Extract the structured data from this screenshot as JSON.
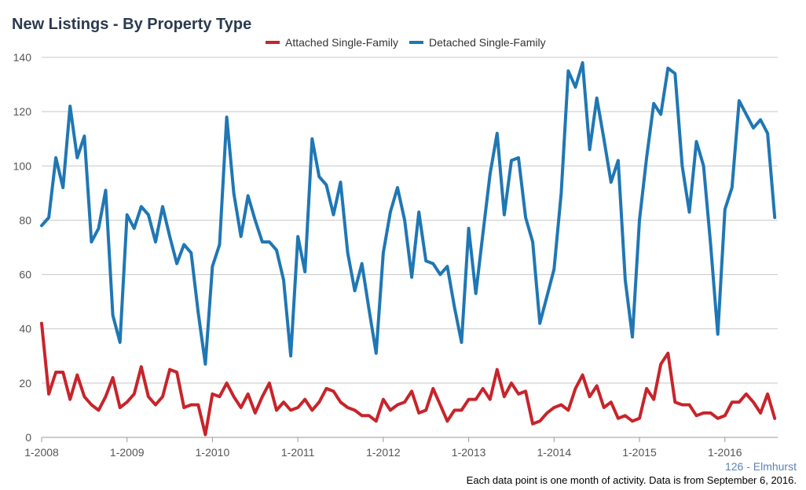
{
  "chart_data": {
    "type": "line",
    "title": "New Listings - By Property Type",
    "x_tick_labels": [
      "1-2008",
      "1-2009",
      "1-2010",
      "1-2011",
      "1-2012",
      "1-2013",
      "1-2014",
      "1-2015",
      "1-2016"
    ],
    "x_start": "1-2008",
    "ylim": [
      0,
      140
    ],
    "y_ticks": [
      0,
      20,
      40,
      60,
      80,
      100,
      120,
      140
    ],
    "grid": true,
    "legend_position": "top-center",
    "series": [
      {
        "name": "Attached Single-Family",
        "color": "#c8242b",
        "values": [
          42,
          16,
          24,
          24,
          14,
          23,
          15,
          12,
          10,
          15,
          22,
          11,
          13,
          16,
          26,
          15,
          12,
          15,
          25,
          24,
          11,
          12,
          12,
          1,
          16,
          15,
          20,
          15,
          11,
          16,
          9,
          15,
          20,
          10,
          13,
          10,
          11,
          14,
          10,
          13,
          18,
          17,
          13,
          11,
          10,
          8,
          8,
          6,
          14,
          10,
          12,
          13,
          17,
          9,
          10,
          18,
          12,
          6,
          10,
          10,
          14,
          14,
          18,
          14,
          25,
          15,
          20,
          16,
          17,
          5,
          6,
          9,
          11,
          12,
          10,
          18,
          23,
          15,
          19,
          11,
          13,
          7,
          8,
          6,
          7,
          18,
          14,
          27,
          31,
          13,
          12,
          12,
          8,
          9,
          9,
          7,
          8,
          13,
          13,
          16,
          13,
          9,
          16,
          7
        ]
      },
      {
        "name": "Detached Single-Family",
        "color": "#1f77b4",
        "values": [
          78,
          81,
          103,
          92,
          122,
          103,
          111,
          72,
          77,
          91,
          45,
          35,
          82,
          77,
          85,
          82,
          72,
          85,
          74,
          64,
          71,
          68,
          46,
          27,
          63,
          71,
          118,
          90,
          74,
          89,
          80,
          72,
          72,
          69,
          58,
          30,
          74,
          61,
          110,
          96,
          93,
          82,
          94,
          68,
          54,
          64,
          47,
          31,
          68,
          83,
          92,
          80,
          59,
          83,
          65,
          64,
          60,
          63,
          48,
          35,
          77,
          53,
          75,
          97,
          112,
          82,
          102,
          103,
          81,
          72,
          42,
          52,
          62,
          90,
          135,
          129,
          138,
          106,
          125,
          110,
          94,
          102,
          58,
          37,
          80,
          103,
          123,
          119,
          136,
          134,
          100,
          83,
          109,
          100,
          71,
          38,
          84,
          92,
          124,
          119,
          114,
          117,
          112,
          81
        ]
      }
    ]
  },
  "footer": {
    "source": "126 - Elmhurst",
    "note": "Each data point is one month of activity. Data is from September 6, 2016."
  }
}
